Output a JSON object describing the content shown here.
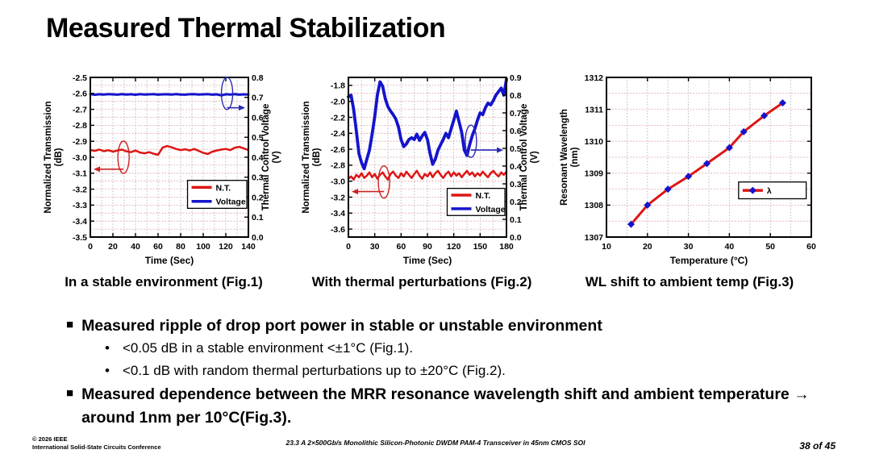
{
  "slide": {
    "title": "Measured Thermal Stabilization",
    "bullets": [
      {
        "text": "Measured ripple of drop port power in stable or unstable environment",
        "sub": [
          "<0.05 dB in a stable environment  <±1°C (Fig.1).",
          "<0.1 dB with random thermal perturbations up to ±20°C (Fig.2)."
        ]
      },
      {
        "text": "Measured dependence between the MRR resonance wavelength shift and ambient temperature → around 1nm per 10°C(Fig.3).",
        "sub": []
      }
    ],
    "footer": {
      "copyright_line1": "© 2026 IEEE",
      "copyright_line2": "International Solid-State Circuits Conference",
      "paper_title": "23.3 A 2×500Gb/s Monolithic Silicon-Photonic DWDM PAM-4 Transceiver in 45nm CMOS SOI",
      "page_indicator": "38 of 45"
    }
  },
  "colors": {
    "red_series": "#dd1515",
    "blue_series": "#1414cc",
    "h_grid": "#d98c8c",
    "v_grid": "#a8a8b2",
    "axis": "#000000"
  },
  "chart_data": [
    {
      "type": "line",
      "caption": "In a stable environment (Fig.1)",
      "xlabel": "Time (Sec)",
      "xlim": [
        0,
        140
      ],
      "xticks": [
        0,
        20,
        40,
        60,
        80,
        100,
        120,
        140
      ],
      "x_grid_step": 10,
      "left_axis": {
        "label_lines": [
          "Normalized Transmission",
          "(dB)"
        ],
        "lim": [
          -3.5,
          -2.5
        ],
        "ticks": [
          -2.5,
          -2.6,
          -2.7,
          -2.8,
          -2.9,
          -3.0,
          -3.1,
          -3.2,
          -3.3,
          -3.4,
          -3.5
        ],
        "dec": 1,
        "grid_step": 0.05
      },
      "right_axis": {
        "label_lines": [
          "Thermal Control Voltage",
          "(V)"
        ],
        "lim": [
          0,
          0.8
        ],
        "ticks": [
          0,
          0.1,
          0.2,
          0.3,
          0.4,
          0.5,
          0.6,
          0.7,
          0.8
        ],
        "dec": 1
      },
      "series": [
        {
          "name": "Voltage",
          "axis": "right",
          "color": "#1414cc",
          "w": 3,
          "x0": 0,
          "dx": 4,
          "y": [
            0.716,
            0.713,
            0.7155,
            0.714,
            0.7165,
            0.715,
            0.7135,
            0.716,
            0.7145,
            0.7155,
            0.713,
            0.716,
            0.7145,
            0.715,
            0.7165,
            0.7135,
            0.715,
            0.7155,
            0.714,
            0.716,
            0.7145,
            0.7135,
            0.7155,
            0.716,
            0.714,
            0.715,
            0.7165,
            0.7135,
            0.715,
            0.71,
            0.7155,
            0.7145,
            0.716,
            0.7135,
            0.715,
            0.7145
          ]
        },
        {
          "name": "N.T.",
          "axis": "left",
          "color": "#dd1515",
          "w": 2.5,
          "x0": 0,
          "dx": 4,
          "y": [
            -2.955,
            -2.96,
            -2.952,
            -2.962,
            -2.956,
            -2.965,
            -2.958,
            -2.952,
            -2.963,
            -2.968,
            -2.958,
            -2.97,
            -2.975,
            -2.968,
            -2.978,
            -2.985,
            -2.94,
            -2.93,
            -2.938,
            -2.948,
            -2.955,
            -2.95,
            -2.958,
            -2.948,
            -2.96,
            -2.972,
            -2.98,
            -2.965,
            -2.958,
            -2.952,
            -2.948,
            -2.955,
            -2.94,
            -2.935,
            -2.945,
            -2.955
          ]
        }
      ],
      "legend": {
        "x": 0.615,
        "y": 0.645,
        "w": 0.375,
        "h": 0.175,
        "entries": [
          {
            "label": "N.T.",
            "color": "#dd1515"
          },
          {
            "label": "Voltage",
            "color": "#1414cc"
          }
        ]
      },
      "annotations": [
        {
          "color": "#cc2222",
          "cx": 0.21,
          "cy": 0.5,
          "ay": 0.575,
          "dir": "left"
        },
        {
          "color": "#2a2ab8",
          "cx": 0.865,
          "cy": 0.1,
          "ay": 0.19,
          "dir": "right"
        }
      ]
    },
    {
      "type": "line",
      "caption": "With thermal perturbations (Fig.2)",
      "xlabel": "Time (Sec)",
      "xlim": [
        0,
        180
      ],
      "xticks": [
        0,
        30,
        60,
        90,
        120,
        150,
        180
      ],
      "x_grid_step": 15,
      "left_axis": {
        "label_lines": [
          "Normalized Transmission",
          "(dB)"
        ],
        "lim": [
          -3.7,
          -1.7
        ],
        "ticks": [
          -1.8,
          -2.0,
          -2.2,
          -2.4,
          -2.6,
          -2.8,
          -3.0,
          -3.2,
          -3.4,
          -3.6
        ],
        "dec": 1,
        "grid_step": 0.1
      },
      "right_axis": {
        "label_lines": [
          "Thermal Control Voltage",
          "(V)"
        ],
        "lim": [
          0,
          0.9
        ],
        "ticks": [
          0,
          0.1,
          0.2,
          0.3,
          0.4,
          0.5,
          0.6,
          0.7,
          0.8,
          0.9
        ],
        "dec": 1
      },
      "series": [
        {
          "name": "Voltage",
          "axis": "right",
          "color": "#1414cc",
          "w": 3.8,
          "x0": 0,
          "dx": 3,
          "y": [
            0.79,
            0.8,
            0.72,
            0.6,
            0.47,
            0.42,
            0.385,
            0.44,
            0.49,
            0.58,
            0.68,
            0.8,
            0.875,
            0.85,
            0.78,
            0.735,
            0.71,
            0.69,
            0.665,
            0.62,
            0.55,
            0.51,
            0.525,
            0.55,
            0.56,
            0.55,
            0.58,
            0.545,
            0.57,
            0.59,
            0.55,
            0.47,
            0.41,
            0.44,
            0.49,
            0.52,
            0.55,
            0.585,
            0.56,
            0.61,
            0.66,
            0.71,
            0.65,
            0.59,
            0.49,
            0.46,
            0.52,
            0.57,
            0.61,
            0.66,
            0.7,
            0.69,
            0.73,
            0.755,
            0.745,
            0.77,
            0.8,
            0.82,
            0.84,
            0.8,
            0.89
          ]
        },
        {
          "name": "N.T.",
          "axis": "left",
          "color": "#dd1515",
          "w": 2.5,
          "x0": 0,
          "dx": 3,
          "y": [
            -2.97,
            -2.94,
            -2.98,
            -2.92,
            -2.95,
            -2.9,
            -2.96,
            -2.93,
            -2.89,
            -2.95,
            -2.91,
            -2.97,
            -2.92,
            -2.89,
            -2.94,
            -2.98,
            -2.91,
            -2.88,
            -2.93,
            -2.96,
            -2.9,
            -2.94,
            -2.88,
            -2.92,
            -2.96,
            -2.91,
            -2.87,
            -2.93,
            -2.97,
            -2.91,
            -2.94,
            -2.89,
            -2.95,
            -2.9,
            -2.87,
            -2.92,
            -2.96,
            -2.91,
            -2.88,
            -2.94,
            -2.89,
            -2.93,
            -2.9,
            -2.95,
            -2.91,
            -2.87,
            -2.92,
            -2.89,
            -2.94,
            -2.9,
            -2.93,
            -2.88,
            -2.92,
            -2.95,
            -2.9,
            -2.87,
            -2.91,
            -2.94,
            -2.89,
            -2.92,
            -2.88
          ]
        }
      ],
      "legend": {
        "x": 0.625,
        "y": 0.695,
        "w": 0.365,
        "h": 0.17,
        "entries": [
          {
            "label": "N.T.",
            "color": "#dd1515"
          },
          {
            "label": "Voltage",
            "color": "#1414cc"
          }
        ]
      },
      "annotations": [
        {
          "color": "#cc2222",
          "cx": 0.225,
          "cy": 0.655,
          "ay": 0.715,
          "dir": "left"
        },
        {
          "color": "#2a2ab8",
          "cx": 0.775,
          "cy": 0.4,
          "ay": 0.455,
          "dir": "right"
        }
      ]
    },
    {
      "type": "line",
      "caption": "WL shift to ambient temp (Fig.3)",
      "xlabel": "Temperature (°C)",
      "xlim": [
        10,
        60
      ],
      "xticks": [
        10,
        20,
        30,
        40,
        50,
        60
      ],
      "x_grid_step": 5,
      "left_axis": {
        "label_lines": [
          "Resonant Wavelength",
          "(nm)"
        ],
        "lim": [
          1307,
          1312
        ],
        "ticks": [
          1307,
          1308,
          1309,
          1310,
          1311,
          1312
        ],
        "dec": 0,
        "grid_step": 0.5
      },
      "series": [
        {
          "name": "λ",
          "axis": "left",
          "color": "#dd1515",
          "w": 3,
          "marker": "diamond",
          "marker_color": "#1414cc",
          "points": [
            [
              16,
              1307.4
            ],
            [
              20,
              1308.0
            ],
            [
              25,
              1308.5
            ],
            [
              30,
              1308.9
            ],
            [
              34.5,
              1309.3
            ],
            [
              40,
              1309.8
            ],
            [
              43.5,
              1310.3
            ],
            [
              48.5,
              1310.8
            ],
            [
              53,
              1311.2
            ]
          ]
        }
      ],
      "legend": {
        "x": 0.645,
        "y": 0.655,
        "w": 0.33,
        "h": 0.105,
        "entries": [
          {
            "label": "λ",
            "color": "#dd1515",
            "marker": "diamond",
            "marker_color": "#1414cc"
          }
        ]
      },
      "annotations": []
    }
  ]
}
